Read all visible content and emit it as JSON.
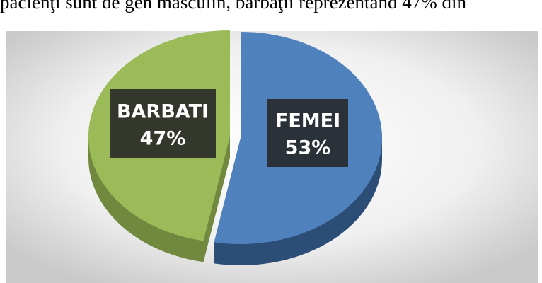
{
  "caption": "pacienţi sunt de gen masculin, bărbaţii reprezentând 47% din",
  "chart_data": {
    "type": "pie",
    "categories": [
      "FEMEI",
      "BARBATI"
    ],
    "values": [
      53,
      47
    ],
    "value_labels": [
      "53%",
      "47%"
    ],
    "colors": [
      "#4f81bd",
      "#9bbb59"
    ],
    "side_colors": [
      "#2c4d75",
      "#71893f"
    ]
  }
}
